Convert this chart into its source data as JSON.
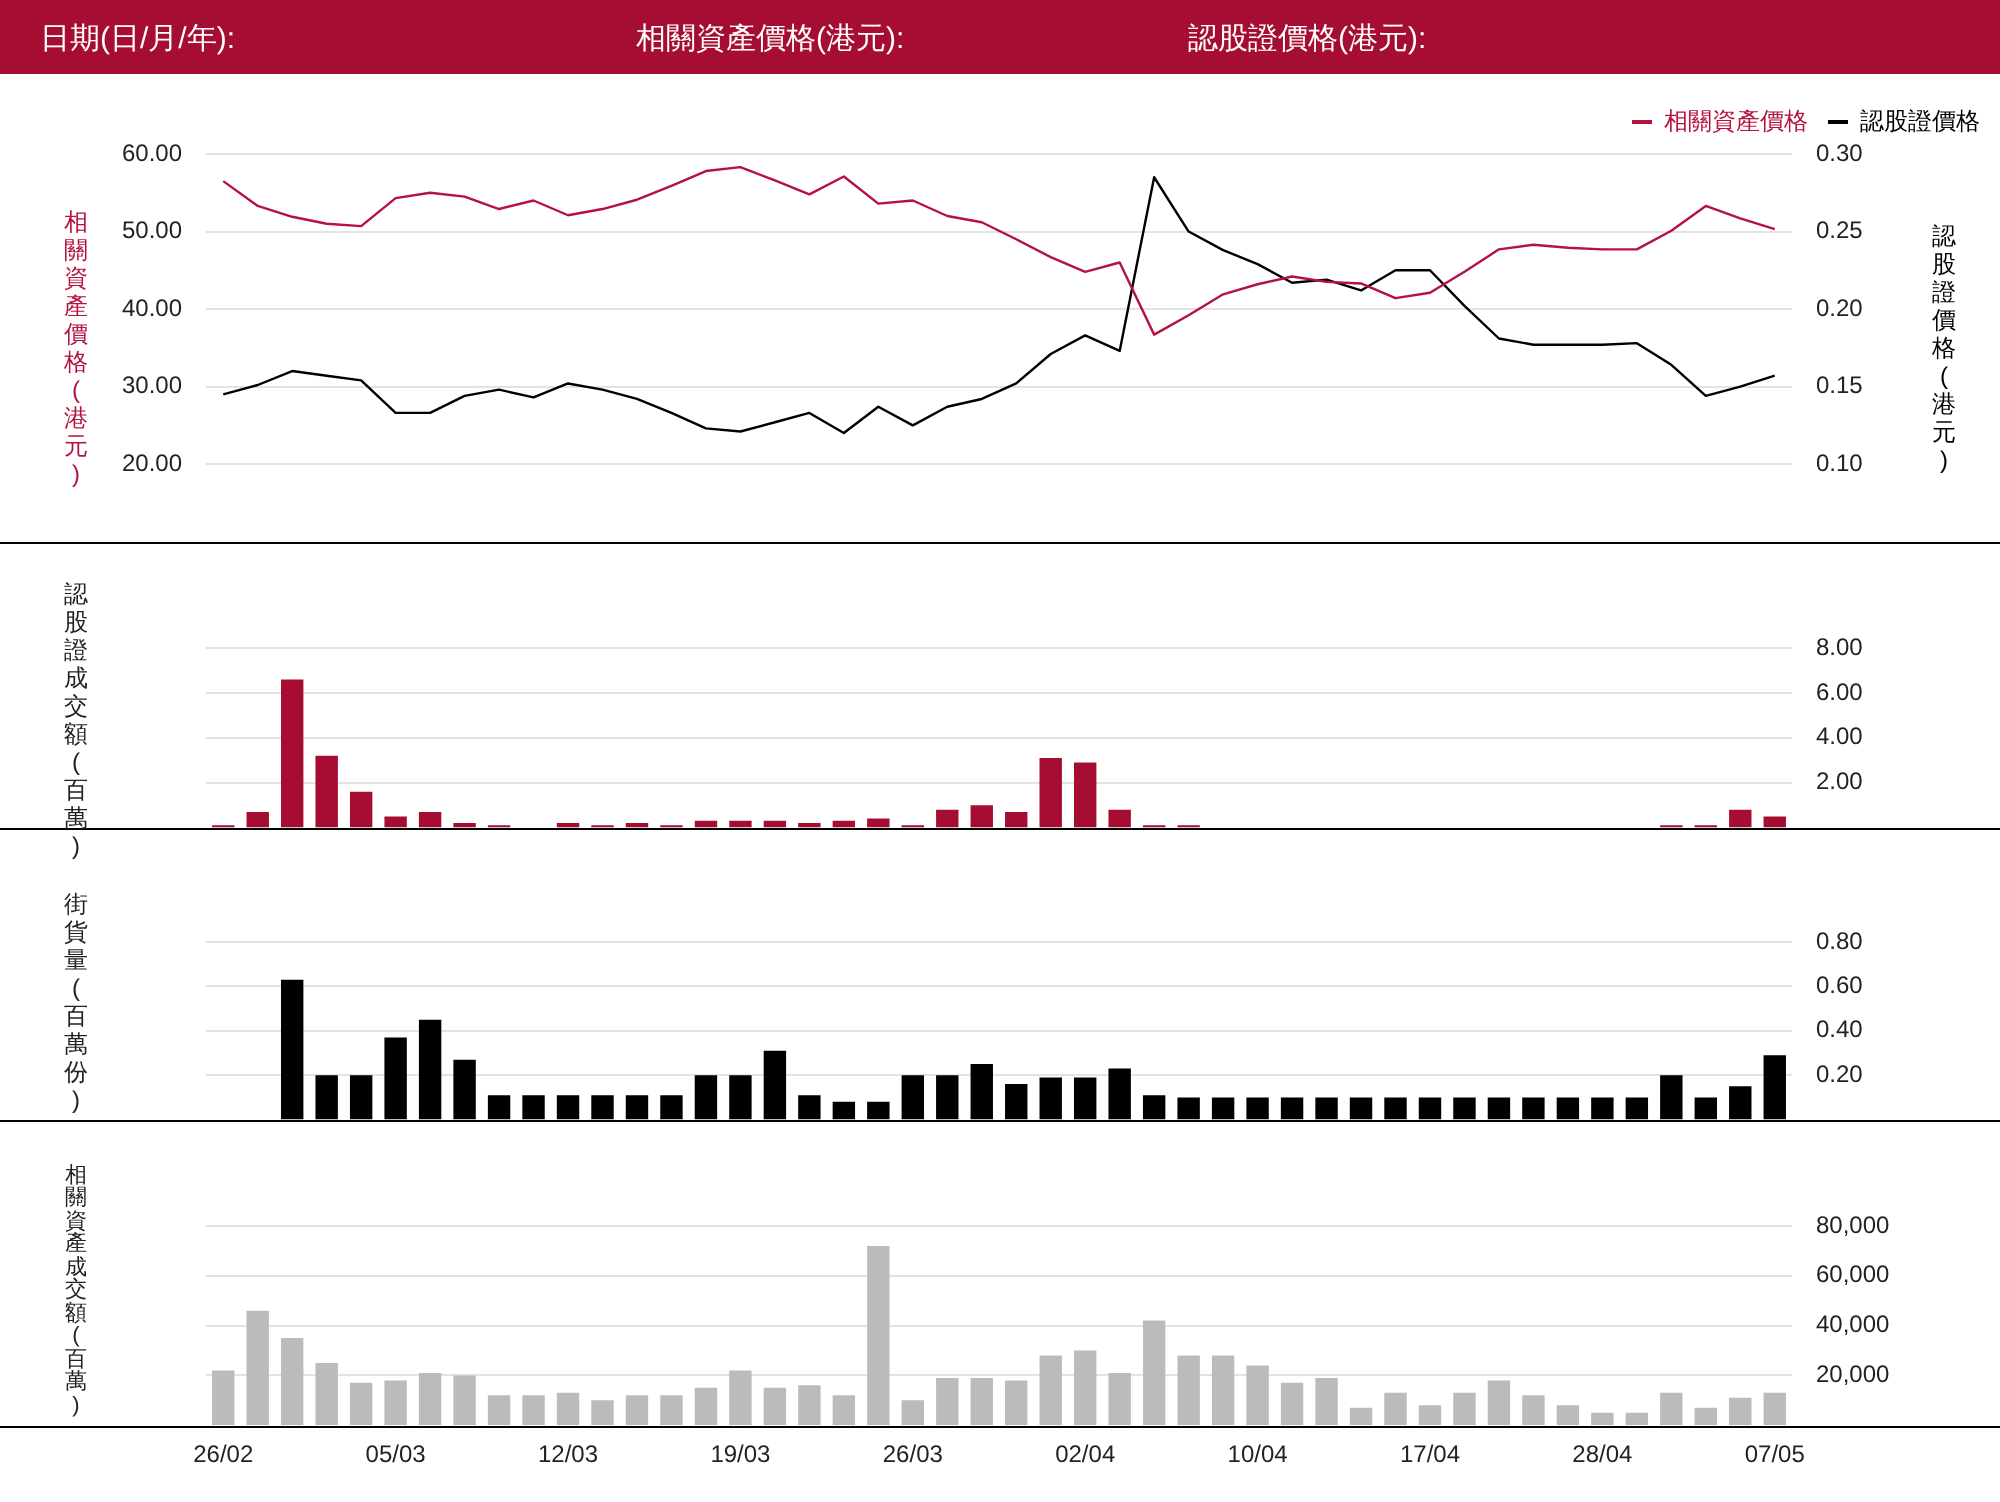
{
  "chart_data": [
    {
      "type": "line",
      "annotations": [
        "日期(日/月/年):",
        "相關資產價格(港元):",
        "認股證價格(港元):"
      ],
      "ylabel": "相關資產價格(港元)",
      "y2label": "認股證價格(港元)",
      "categories": [
        null,
        null,
        null,
        null,
        null,
        null,
        null,
        null,
        null,
        null,
        null,
        null,
        null,
        null,
        null,
        null,
        null,
        null,
        null,
        null,
        null,
        null,
        null,
        null,
        null,
        null,
        null,
        null,
        null,
        null,
        null,
        null,
        null,
        null,
        null,
        null,
        null,
        null,
        null,
        null,
        null,
        null,
        null,
        null,
        null,
        null
      ],
      "series": [
        {
          "name": "相關資產價格",
          "color": "#b5123d",
          "values": [
            56.5,
            53.3,
            51.9,
            51.0,
            50.7,
            54.3,
            55.0,
            54.5,
            52.9,
            54.0,
            52.1,
            52.9,
            54.1,
            55.9,
            57.8,
            58.3,
            56.6,
            54.8,
            57.1,
            53.6,
            54.0,
            52.0,
            51.2,
            49.0,
            46.7,
            44.8,
            46.0,
            36.7,
            39.2,
            41.9,
            43.2,
            44.2,
            43.5,
            43.3,
            41.4,
            42.1,
            44.8,
            47.7,
            48.3,
            47.9,
            47.7,
            47.7,
            50.1,
            53.3,
            51.7,
            50.3
          ]
        },
        {
          "name": "認股證價格",
          "color": "#000000",
          "axis": "y2",
          "values": [
            0.145,
            0.151,
            0.16,
            0.157,
            0.154,
            0.133,
            0.133,
            0.144,
            0.148,
            0.143,
            0.152,
            0.148,
            0.142,
            0.133,
            0.123,
            0.121,
            0.127,
            0.133,
            0.12,
            0.137,
            0.125,
            0.137,
            0.142,
            0.152,
            0.171,
            0.183,
            0.173,
            0.285,
            0.25,
            0.238,
            0.229,
            0.217,
            0.219,
            0.212,
            0.225,
            0.225,
            0.202,
            0.181,
            0.177,
            0.177,
            0.177,
            0.178,
            0.164,
            0.144,
            0.15,
            0.157
          ]
        }
      ],
      "ylim": [
        10,
        60
      ],
      "yticks": [
        {
          "value": 20,
          "label": "20.00"
        },
        {
          "value": 30,
          "label": "30.00"
        },
        {
          "value": 40,
          "label": "40.00"
        },
        {
          "value": 50,
          "label": "50.00"
        },
        {
          "value": 60,
          "label": "60.00"
        }
      ],
      "y2lim": [
        0.05,
        0.3
      ],
      "y2ticks": [
        {
          "value": 0.1,
          "label": "0.10"
        },
        {
          "value": 0.15,
          "label": "0.15"
        },
        {
          "value": 0.2,
          "label": "0.20"
        },
        {
          "value": 0.25,
          "label": "0.25"
        },
        {
          "value": 0.3,
          "label": "0.30"
        }
      ],
      "grid": "y",
      "legend": "top right",
      "tick_labels": "y"
    },
    {
      "type": "bar",
      "ylabel": "認股證成交額(百萬)",
      "categories": [
        null,
        null,
        null,
        null,
        null,
        null,
        null,
        null,
        null,
        null,
        null,
        null,
        null,
        null,
        null,
        null,
        null,
        null,
        null,
        null,
        null,
        null,
        null,
        null,
        null,
        null,
        null,
        null,
        null,
        null,
        null,
        null,
        null,
        null,
        null,
        null,
        null,
        null,
        null,
        null,
        null,
        null,
        null,
        null,
        null,
        null
      ],
      "series": [
        {
          "color": "#a50e32",
          "values": [
            0.1,
            0.7,
            6.6,
            3.2,
            1.6,
            0.5,
            0.7,
            0.2,
            0.1,
            null,
            0.2,
            0.1,
            0.2,
            0.1,
            0.3,
            0.3,
            0.3,
            0.2,
            0.3,
            0.4,
            0.1,
            0.8,
            1.0,
            0.7,
            3.1,
            2.9,
            0.8,
            0.1,
            0.1,
            null,
            null,
            null,
            null,
            null,
            null,
            null,
            null,
            null,
            null,
            null,
            null,
            null,
            0.1,
            0.1,
            0.8,
            0.5
          ]
        }
      ],
      "ylim": [
        0,
        8
      ],
      "yticks": [
        {
          "value": 2,
          "label": "2.00"
        },
        {
          "value": 4,
          "label": "4.00"
        },
        {
          "value": 6,
          "label": "6.00"
        },
        {
          "value": 8,
          "label": "8.00"
        }
      ],
      "grid": "y",
      "tick_labels": "y"
    },
    {
      "type": "bar",
      "ylabel": "街貨量(百萬份)",
      "categories": [
        null,
        null,
        null,
        null,
        null,
        null,
        null,
        null,
        null,
        null,
        null,
        null,
        null,
        null,
        null,
        null,
        null,
        null,
        null,
        null,
        null,
        null,
        null,
        null,
        null,
        null,
        null,
        null,
        null,
        null,
        null,
        null,
        null,
        null,
        null,
        null,
        null,
        null,
        null,
        null,
        null,
        null,
        null,
        null,
        null,
        null
      ],
      "series": [
        {
          "color": "#000000",
          "values": [
            null,
            null,
            0.63,
            0.2,
            0.2,
            0.37,
            0.45,
            0.27,
            0.11,
            0.11,
            0.11,
            0.11,
            0.11,
            0.11,
            0.2,
            0.2,
            0.31,
            0.11,
            0.08,
            0.08,
            0.2,
            0.2,
            0.25,
            0.16,
            0.19,
            0.19,
            0.23,
            0.11,
            0.1,
            0.1,
            0.1,
            0.1,
            0.1,
            0.1,
            0.1,
            0.1,
            0.1,
            0.1,
            0.1,
            0.1,
            0.1,
            0.1,
            0.2,
            0.1,
            0.15,
            0.29
          ]
        }
      ],
      "ylim": [
        0,
        0.8
      ],
      "yticks": [
        {
          "value": 0.2,
          "label": "0.20"
        },
        {
          "value": 0.4,
          "label": "0.40"
        },
        {
          "value": 0.6,
          "label": "0.60"
        },
        {
          "value": 0.8,
          "label": "0.80"
        }
      ],
      "grid": "y",
      "tick_labels": "y"
    },
    {
      "type": "bar",
      "ylabel": "相關資產成交額(百萬)",
      "categories": [
        "26/02",
        null,
        null,
        null,
        null,
        "05/03",
        null,
        null,
        null,
        null,
        "12/03",
        null,
        null,
        null,
        null,
        "19/03",
        null,
        null,
        null,
        null,
        "26/03",
        null,
        null,
        null,
        null,
        "02/04",
        null,
        null,
        null,
        null,
        "10/04",
        null,
        null,
        null,
        null,
        "17/04",
        null,
        null,
        null,
        null,
        "28/04",
        null,
        null,
        null,
        null,
        "07/05"
      ],
      "series": [
        {
          "color": "#bbbbbb",
          "values": [
            22000,
            46000,
            35000,
            25000,
            17000,
            18000,
            21000,
            20000,
            12000,
            12000,
            13000,
            10000,
            12000,
            12000,
            15000,
            22000,
            15000,
            16000,
            12000,
            72000,
            10000,
            19000,
            19000,
            18000,
            28000,
            30000,
            21000,
            42000,
            28000,
            28000,
            24000,
            17000,
            19000,
            7000,
            13000,
            8000,
            13000,
            18000,
            12000,
            8000,
            5000,
            5000,
            13000,
            7000,
            11000,
            13000
          ]
        }
      ],
      "ylim": [
        0,
        80000
      ],
      "yticks": [
        {
          "value": 20000,
          "label": "20,000"
        },
        {
          "value": 40000,
          "label": "40,000"
        },
        {
          "value": 60000,
          "label": "60,000"
        },
        {
          "value": 80000,
          "label": "80,000"
        }
      ],
      "grid": "y"
    }
  ]
}
